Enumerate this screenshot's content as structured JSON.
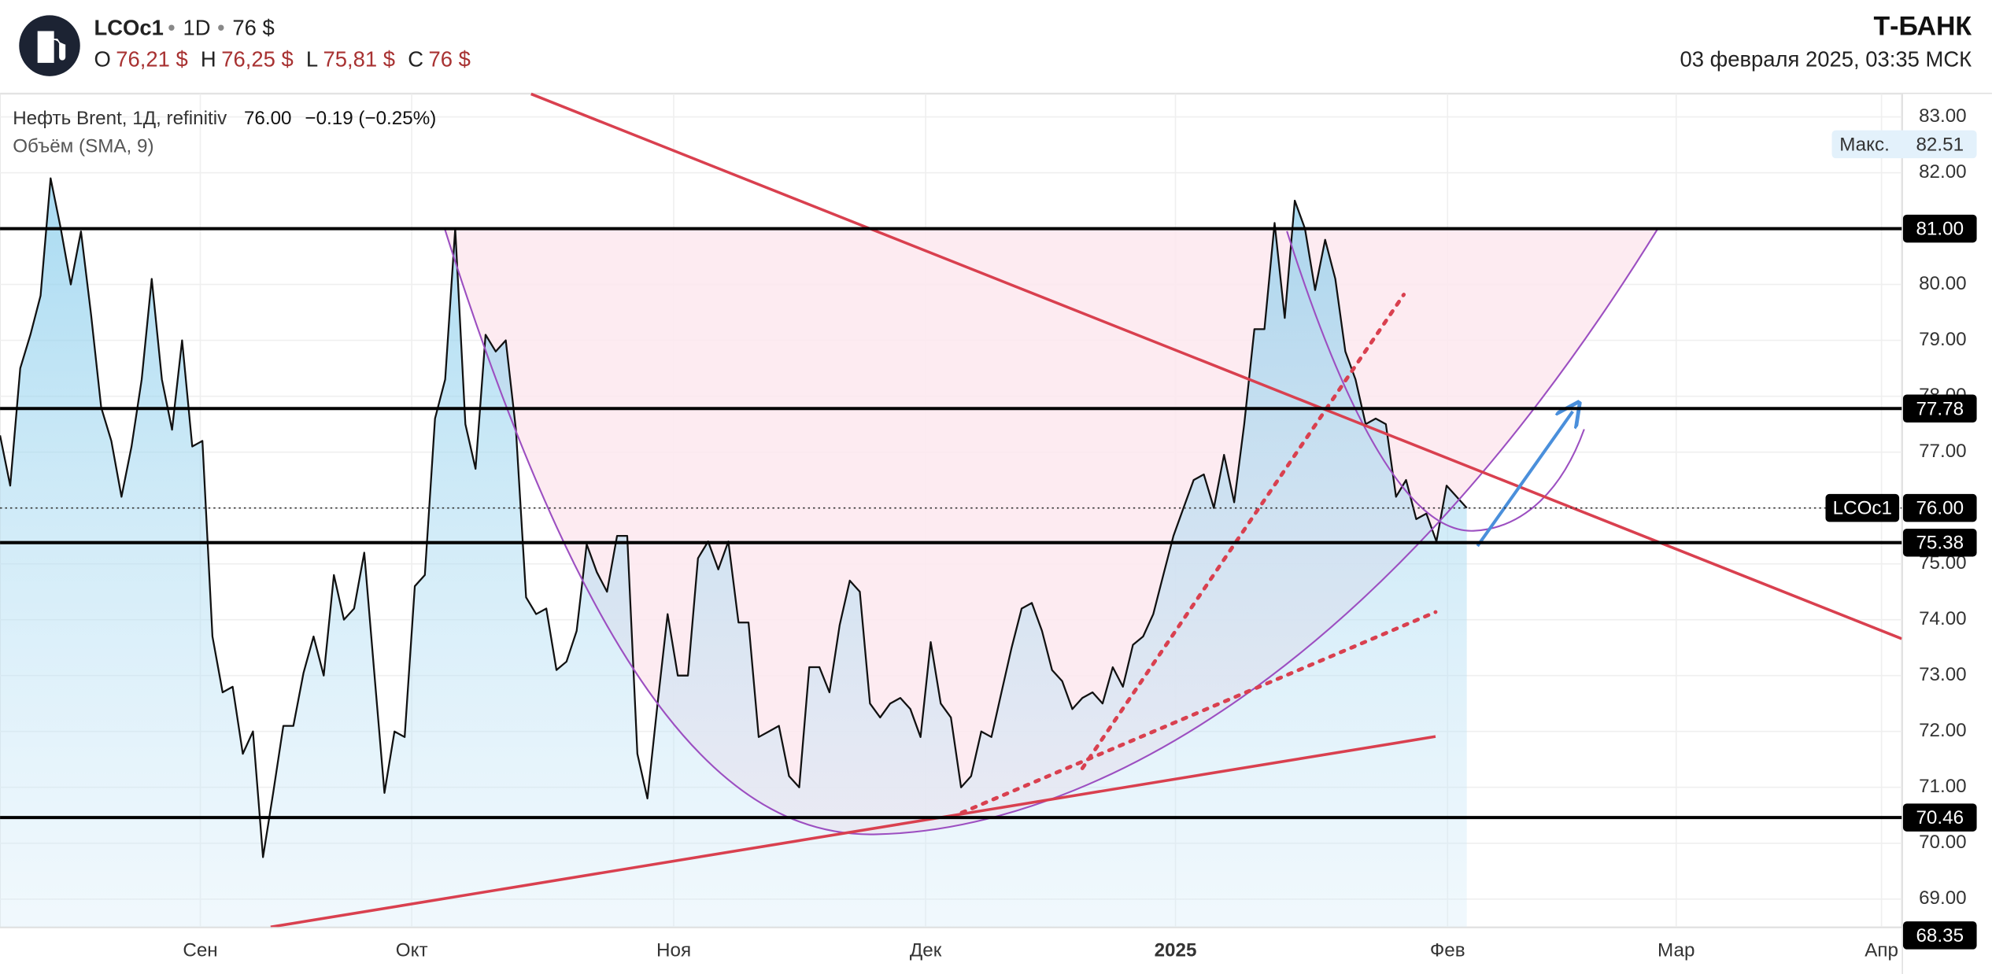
{
  "header": {
    "symbol": "LCOc1",
    "interval": "1D",
    "price": "76 $",
    "ohlc": [
      {
        "label": "O",
        "value": "76,21 $"
      },
      {
        "label": "H",
        "value": "76,25 $"
      },
      {
        "label": "L",
        "value": "75,81 $"
      },
      {
        "label": "C",
        "value": "76 $"
      }
    ],
    "brand": "Т‑БАНК",
    "datetime": "03 февраля 2025, 03:35 МСК"
  },
  "chart_data": {
    "type": "area",
    "title": "Нефть Brent, 1Д, refinitiv",
    "last_value": "76.00",
    "change": "−0.19 (−0.25%)",
    "indicator": "Объём (SMA, 9)",
    "series": [
      {
        "name": "LCOc1",
        "color": "#111111",
        "values": [
          77.3,
          76.4,
          78.5,
          79.1,
          79.8,
          81.9,
          81.0,
          80.0,
          80.95,
          79.45,
          77.8,
          77.2,
          76.2,
          77.1,
          78.3,
          80.1,
          78.3,
          77.4,
          79.0,
          77.1,
          77.2,
          73.7,
          72.7,
          72.8,
          71.6,
          72.0,
          69.75,
          70.9,
          72.1,
          72.1,
          73.05,
          73.7,
          73.0,
          74.8,
          74.0,
          74.2,
          75.2,
          73.05,
          70.9,
          72.0,
          71.9,
          74.6,
          74.8,
          77.6,
          78.3,
          81.0,
          77.5,
          76.7,
          79.1,
          78.8,
          79.0,
          77.4,
          74.4,
          74.1,
          74.2,
          73.1,
          73.25,
          73.8,
          75.35,
          74.85,
          74.5,
          75.5,
          75.5,
          71.6,
          70.8,
          72.5,
          74.1,
          73.0,
          73.0,
          75.1,
          75.4,
          74.9,
          75.4,
          73.95,
          73.95,
          71.9,
          72.0,
          72.1,
          71.2,
          71.0,
          73.15,
          73.15,
          72.7,
          73.9,
          74.7,
          74.5,
          72.5,
          72.25,
          72.5,
          72.6,
          72.4,
          71.9,
          73.6,
          72.5,
          72.25,
          71.0,
          71.2,
          72.0,
          71.9,
          72.7,
          73.5,
          74.2,
          74.3,
          73.8,
          73.1,
          72.9,
          72.4,
          72.6,
          72.7,
          72.5,
          73.15,
          72.8,
          73.55,
          73.7,
          74.1,
          74.8,
          75.5,
          76.0,
          76.5,
          76.6,
          76.0,
          76.95,
          76.1,
          77.5,
          79.2,
          79.2,
          81.1,
          79.4,
          81.5,
          81.0,
          79.9,
          80.8,
          80.1,
          78.8,
          78.3,
          77.5,
          77.6,
          77.5,
          76.2,
          76.5,
          75.8,
          75.9,
          75.4,
          76.4,
          76.2,
          76.0
        ]
      }
    ],
    "xlim": [
      0,
      188
    ],
    "xticks": [
      {
        "value": 19.8,
        "label": "Сен"
      },
      {
        "value": 40.7,
        "label": "Окт"
      },
      {
        "value": 66.6,
        "label": "Ноя"
      },
      {
        "value": 91.5,
        "label": "Дек"
      },
      {
        "value": 116.2,
        "label": "2025"
      },
      {
        "value": 143.1,
        "label": "Фев"
      },
      {
        "value": 165.7,
        "label": "Мар"
      },
      {
        "value": 186,
        "label": "Апр"
      }
    ],
    "ylim": [
      68.5,
      83.41
    ],
    "yticks": [
      {
        "value": 69,
        "label": "69.00"
      },
      {
        "value": 70,
        "label": "70.00"
      },
      {
        "value": 71,
        "label": "71.00"
      },
      {
        "value": 72,
        "label": "72.00"
      },
      {
        "value": 73,
        "label": "73.00"
      },
      {
        "value": 74,
        "label": "74.00"
      },
      {
        "value": 75,
        "label": "75.00"
      },
      {
        "value": 76,
        "label": "76.00"
      },
      {
        "value": 77,
        "label": "77.00"
      },
      {
        "value": 78,
        "label": "78.00"
      },
      {
        "value": 79,
        "label": "79.00"
      },
      {
        "value": 80,
        "label": "80.00"
      },
      {
        "value": 81,
        "label": "81.00"
      },
      {
        "value": 82,
        "label": "82.00"
      },
      {
        "value": 83,
        "label": "83.00"
      }
    ],
    "grid": true,
    "levels": [
      {
        "value": 81,
        "label": "81.00"
      },
      {
        "value": 77.78,
        "label": "77.78"
      },
      {
        "value": 75.38,
        "label": "75.38"
      },
      {
        "value": 70.46,
        "label": "70.46"
      }
    ],
    "current": {
      "name": "LCOc1",
      "value": 76,
      "label": "76.00"
    },
    "max": {
      "name": "Макс.",
      "value": 82.51,
      "label": "82.51"
    },
    "bottom_badge": {
      "value": 68.35,
      "label": "68.35"
    }
  }
}
